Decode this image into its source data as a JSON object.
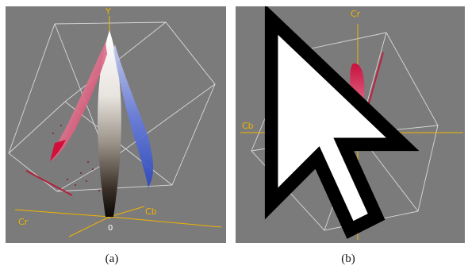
{
  "panels": [
    {
      "id": "a",
      "axis_labels": {
        "y": "Y",
        "cr": "Cr",
        "cb": "Cb",
        "origin": "0"
      },
      "caption": "(a)"
    },
    {
      "id": "b",
      "axis_labels": {
        "cr": "Cr",
        "cb": "Cb"
      },
      "caption": "(b)"
    }
  ],
  "colors": {
    "panel_bg": "#7b7b7b",
    "axis": "#f0b400",
    "wireframe": "#d9d9d9",
    "red_cluster": "#d8204a",
    "blue_cluster": "#4466dd"
  },
  "icons": [
    "mouse-cursor-icon"
  ]
}
